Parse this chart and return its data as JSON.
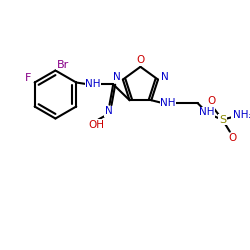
{
  "background": "#ffffff",
  "bond_color": "#000000",
  "N_color": "#0000cc",
  "O_color": "#cc0000",
  "F_color": "#880088",
  "Br_color": "#880088",
  "S_color": "#888800",
  "line_width": 1.5,
  "figsize": [
    2.5,
    2.5
  ],
  "dpi": 100,
  "xlim": [
    0,
    250
  ],
  "ylim": [
    0,
    250
  ]
}
